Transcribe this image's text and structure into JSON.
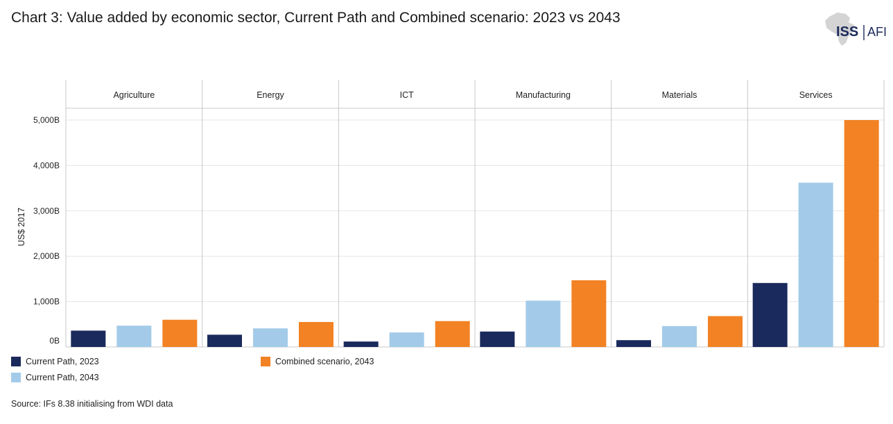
{
  "title": "Chart 3: Value added by economic sector, Current Path and Combined scenario: 2023 vs 2043",
  "logo": {
    "left_text": "ISS",
    "right_text": "AFI"
  },
  "source": "Source: IFs 8.38 initialising from WDI data",
  "colors": {
    "current_2023": "#1b2a5c",
    "current_2043": "#a3cbe9",
    "combined_2043": "#f28224",
    "grid": "#e6e6e6",
    "panel_border": "#c8c8c8"
  },
  "legend": [
    {
      "label": "Current Path, 2023",
      "color_key": "current_2023"
    },
    {
      "label": "Current Path, 2043",
      "color_key": "current_2043"
    },
    {
      "label": "Combined scenario, 2043",
      "color_key": "combined_2043"
    }
  ],
  "chart_data": {
    "type": "bar",
    "title": "Chart 3: Value added by economic sector, Current Path and Combined scenario: 2023 vs 2043",
    "xlabel": "",
    "ylabel": "US$ 2017",
    "ylim": [
      0,
      5000
    ],
    "yticks": [
      0,
      1000,
      2000,
      3000,
      4000,
      5000
    ],
    "ytick_labels": [
      "0B",
      "1,000B",
      "2,000B",
      "3,000B",
      "4,000B",
      "5,000B"
    ],
    "categories": [
      "Agriculture",
      "Energy",
      "ICT",
      "Manufacturing",
      "Materials",
      "Services"
    ],
    "series": [
      {
        "name": "Current Path, 2023",
        "values": [
          360,
          270,
          120,
          340,
          150,
          1410
        ]
      },
      {
        "name": "Current Path, 2043",
        "values": [
          470,
          410,
          320,
          1020,
          460,
          3620
        ]
      },
      {
        "name": "Combined scenario, 2043",
        "values": [
          600,
          550,
          570,
          1470,
          680,
          5000
        ]
      }
    ]
  }
}
